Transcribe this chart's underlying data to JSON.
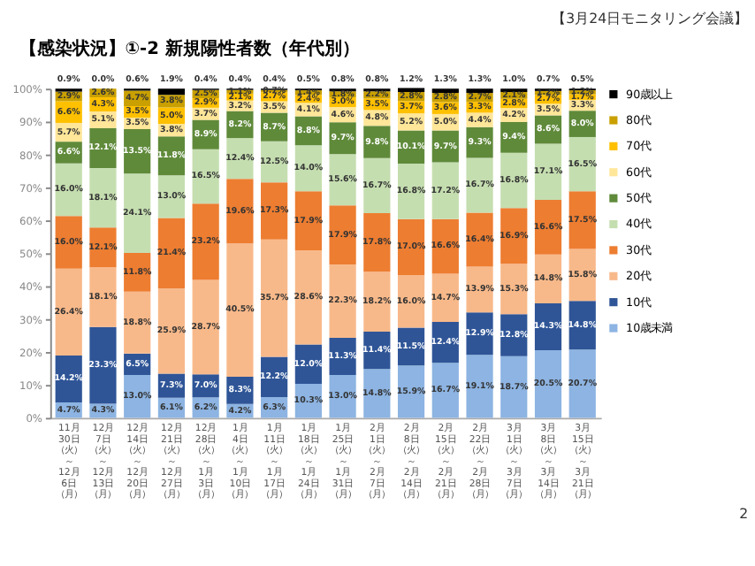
{
  "chart_data": {
    "type": "bar",
    "stacked": true,
    "title": "【感染状況】①-2 新規陽性者数（年代別）",
    "annotations": [
      "【3月24日モニタリング会議】",
      "2"
    ],
    "categories": [
      "11月30日（火）～12月6日（月）",
      "12月7日（火）～12月13日（月）",
      "12月14日（火）～12月20日（月）",
      "12月21日（火）～12月27日（月）",
      "12月28日（火）～1月3日（月）",
      "1月4日（火）～1月10日（月）",
      "1月11日（火）～1月17日（月）",
      "1月18日（火）～1月24日（月）",
      "1月25日（火）～1月31日（月）",
      "2月1日（火）～2月7日（月）",
      "2月8日（火）～2月14日（月）",
      "2月15日（火）～2月21日（月）",
      "2月22日（火）～2月28日（月）",
      "3月1日（火）～3月7日（月）",
      "3月8日（火）～3月14日（月）",
      "3月15日（火）～3月21日（月）"
    ],
    "series": [
      {
        "name": "10歳未満",
        "color": "#8db4e2",
        "values": [
          4.7,
          4.3,
          13.0,
          6.1,
          6.2,
          4.2,
          6.3,
          10.3,
          13.0,
          14.8,
          15.9,
          16.7,
          19.1,
          18.7,
          20.5,
          20.7
        ],
        "value_labels": [
          "4.7%",
          "4.3%",
          "13.0%",
          "6.1%",
          "6.2%",
          "4.2%",
          "6.3%",
          "10.3%",
          "13.0%",
          "14.8%",
          "15.9%",
          "16.7%",
          "19.1%",
          "18.7%",
          "20.5%",
          "20.7%"
        ]
      },
      {
        "name": "10代",
        "color": "#2f5597",
        "values": [
          14.2,
          23.3,
          6.5,
          7.3,
          7.0,
          8.3,
          12.2,
          12.0,
          11.3,
          11.4,
          11.5,
          12.4,
          12.9,
          12.8,
          14.3,
          14.8
        ],
        "value_labels": [
          "14.2%",
          "23.3%",
          "6.5%",
          "7.3%",
          "7.0%",
          "8.3%",
          "12.2%",
          "12.0%",
          "11.3%",
          "11.4%",
          "11.5%",
          "12.4%",
          "12.9%",
          "12.8%",
          "14.3%",
          "14.8%"
        ]
      },
      {
        "name": "20代",
        "color": "#f8b98a",
        "values": [
          26.4,
          18.1,
          18.8,
          25.9,
          28.7,
          40.5,
          35.7,
          28.6,
          22.3,
          18.2,
          16.0,
          14.7,
          13.9,
          15.3,
          14.8,
          15.8
        ],
        "value_labels": [
          "26.4%",
          "18.1%",
          "18.8%",
          "25.9%",
          "28.7%",
          "40.5%",
          "35.7%",
          "28.6%",
          "22.3%",
          "18.2%",
          "16.0%",
          "14.7%",
          "13.9%",
          "15.3%",
          "14.8%",
          "15.8%"
        ]
      },
      {
        "name": "30代",
        "color": "#ed7d31",
        "values": [
          16.0,
          12.1,
          11.8,
          21.4,
          23.2,
          19.6,
          17.3,
          17.9,
          17.9,
          17.8,
          17.0,
          16.6,
          16.4,
          16.9,
          16.6,
          17.5
        ],
        "value_labels": [
          "16.0%",
          "12.1%",
          "11.8%",
          "21.4%",
          "23.2%",
          "19.6%",
          "17.3%",
          "17.9%",
          "17.9%",
          "17.8%",
          "17.0%",
          "16.6%",
          "16.4%",
          "16.9%",
          "16.6%",
          "17.5%"
        ]
      },
      {
        "name": "40代",
        "color": "#c5deb0",
        "values": [
          16.0,
          18.1,
          24.1,
          13.0,
          16.5,
          12.4,
          12.5,
          14.0,
          15.6,
          16.7,
          16.8,
          17.2,
          16.7,
          16.8,
          17.1,
          16.5
        ],
        "value_labels": [
          "16.0%",
          "18.1%",
          "24.1%",
          "13.0%",
          "16.5%",
          "12.4%",
          "12.5%",
          "14.0%",
          "15.6%",
          "16.7%",
          "16.8%",
          "17.2%",
          "16.7%",
          "16.8%",
          "17.1%",
          "16.5%"
        ]
      },
      {
        "name": "50代",
        "color": "#5f8a3a",
        "values": [
          6.6,
          12.1,
          13.5,
          11.8,
          8.9,
          8.2,
          8.7,
          8.8,
          9.7,
          9.8,
          10.1,
          9.7,
          9.3,
          9.4,
          8.6,
          8.0
        ],
        "value_labels": [
          "6.6%",
          "12.1%",
          "13.5%",
          "11.8%",
          "8.9%",
          "8.2%",
          "8.7%",
          "8.8%",
          "9.7%",
          "9.8%",
          "10.1%",
          "9.7%",
          "9.3%",
          "9.4%",
          "8.6%",
          "8.0%"
        ]
      },
      {
        "name": "60代",
        "color": "#ffe699",
        "values": [
          5.7,
          5.1,
          3.5,
          3.8,
          3.7,
          3.2,
          3.5,
          4.1,
          4.6,
          4.8,
          5.2,
          5.0,
          4.4,
          4.2,
          3.5,
          3.3
        ],
        "value_labels": [
          "5.7%",
          "5.1%",
          "3.5%",
          "3.8%",
          "3.7%",
          "3.2%",
          "3.5%",
          "4.1%",
          "4.6%",
          "4.8%",
          "5.2%",
          "5.0%",
          "4.4%",
          "4.2%",
          "3.5%",
          "3.3%"
        ]
      },
      {
        "name": "70代",
        "color": "#ffc000",
        "values": [
          6.6,
          4.3,
          3.5,
          5.0,
          2.9,
          2.1,
          2.7,
          2.4,
          3.0,
          3.5,
          3.7,
          3.6,
          3.3,
          2.8,
          2.7,
          1.7
        ],
        "value_labels": [
          "6.6%",
          "4.3%",
          "3.5%",
          "5.0%",
          "2.9%",
          "2.1%",
          "2.7%",
          "2.4%",
          "3.0%",
          "3.5%",
          "3.7%",
          "3.6%",
          "3.3%",
          "2.8%",
          "2.7%",
          "1.7%"
        ]
      },
      {
        "name": "80代",
        "color": "#c9a000",
        "values": [
          2.9,
          2.6,
          4.7,
          3.8,
          2.5,
          1.1,
          0.7,
          1.4,
          1.8,
          2.2,
          2.8,
          2.8,
          2.7,
          2.1,
          1.2,
          1.2
        ],
        "value_labels": [
          "2.9%",
          "2.6%",
          "4.7%",
          "3.8%",
          "2.5%",
          "1.1%",
          "0.7%",
          "1.4%",
          "1.8%",
          "2.2%",
          "2.8%",
          "2.8%",
          "2.7%",
          "2.1%",
          "1.2%",
          "1.2%"
        ]
      },
      {
        "name": "90歳以上",
        "color": "#000000",
        "values": [
          0.9,
          0.0,
          0.6,
          1.9,
          0.4,
          0.4,
          0.4,
          0.5,
          0.8,
          0.8,
          1.2,
          1.3,
          1.3,
          1.0,
          0.7,
          0.5
        ],
        "value_labels": [
          "0.9%",
          "0.0%",
          "0.6%",
          "1.9%",
          "0.4%",
          "0.4%",
          "0.4%",
          "0.5%",
          "0.8%",
          "0.8%",
          "1.2%",
          "1.3%",
          "1.3%",
          "1.0%",
          "0.7%",
          "0.5%"
        ]
      }
    ],
    "ylim": [
      0,
      100
    ],
    "yticks": [
      {
        "value": 0,
        "label": "0%"
      },
      {
        "value": 10,
        "label": "10%"
      },
      {
        "value": 20,
        "label": "20%"
      },
      {
        "value": 30,
        "label": "30%"
      },
      {
        "value": 40,
        "label": "40%"
      },
      {
        "value": 50,
        "label": "50%"
      },
      {
        "value": 60,
        "label": "60%"
      },
      {
        "value": 70,
        "label": "70%"
      },
      {
        "value": 80,
        "label": "80%"
      },
      {
        "value": 90,
        "label": "90%"
      },
      {
        "value": 100,
        "label": "100%"
      }
    ],
    "grid": false,
    "legend": "right"
  }
}
